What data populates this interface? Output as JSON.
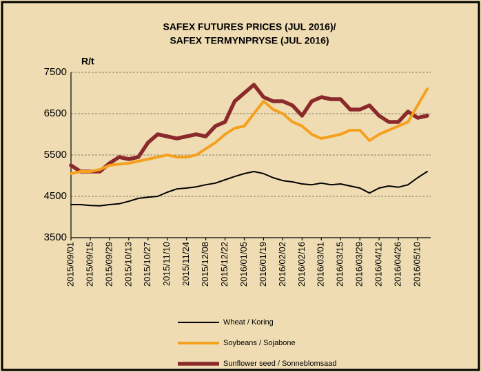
{
  "chart_data": {
    "type": "line",
    "title": [
      "SAFEX FUTURES PRICES (JUL 2016)/",
      "SAFEX TERMYNPRYSE (JUL 2016)"
    ],
    "ylabel": "R/t",
    "categories": [
      "2015/09/01",
      null,
      "2015/09/15",
      null,
      "2015/09/29",
      null,
      "2015/10/13",
      null,
      "2015/10/27",
      null,
      "2015/11/10",
      null,
      "2015/11/24",
      null,
      "2015/12/08",
      null,
      "2015/12/22",
      null,
      "2016/01/05",
      null,
      "2016/01/19",
      null,
      "2016/02/02",
      null,
      "2016/02/16",
      null,
      "2016/03/01",
      null,
      "2016/03/15",
      null,
      "2016/03/29",
      null,
      "2016/04/12",
      null,
      "2016/04/26",
      null,
      "2016/05/10",
      null
    ],
    "series": [
      {
        "name": "Wheat / Koring",
        "color": "#000000",
        "values": [
          4300,
          4300,
          4280,
          4270,
          4300,
          4320,
          4380,
          4450,
          4480,
          4500,
          4600,
          4680,
          4700,
          4730,
          4780,
          4820,
          4900,
          4980,
          5050,
          5100,
          5050,
          4950,
          4880,
          4850,
          4800,
          4780,
          4820,
          4780,
          4800,
          4750,
          4700,
          4580,
          4700,
          4750,
          4720,
          4780,
          4950,
          5100
        ]
      },
      {
        "name": "Soybeans / Sojabone",
        "color": "#f5a01e",
        "values": [
          5050,
          5100,
          5100,
          5150,
          5250,
          5280,
          5300,
          5350,
          5400,
          5450,
          5500,
          5450,
          5450,
          5500,
          5650,
          5800,
          6000,
          6150,
          6200,
          6500,
          6800,
          6600,
          6500,
          6300,
          6200,
          6000,
          5900,
          5950,
          6000,
          6100,
          6100,
          5850,
          6000,
          6100,
          6200,
          6300,
          6700,
          7100
        ]
      },
      {
        "name": "Sunflower seed / Sonneblomsaad",
        "color": "#8b2a2a",
        "values": [
          5250,
          5100,
          5100,
          5100,
          5300,
          5450,
          5400,
          5450,
          5800,
          6000,
          5950,
          5900,
          5950,
          6000,
          5950,
          6200,
          6300,
          6800,
          7000,
          7200,
          6900,
          6800,
          6800,
          6700,
          6450,
          6800,
          6900,
          6850,
          6850,
          6600,
          6600,
          6700,
          6450,
          6300,
          6300,
          6550,
          6400,
          6450
        ]
      }
    ],
    "ylim": [
      3500,
      7500
    ],
    "yticks": [
      3500,
      4500,
      5500,
      6500,
      7500
    ],
    "grid": true
  }
}
